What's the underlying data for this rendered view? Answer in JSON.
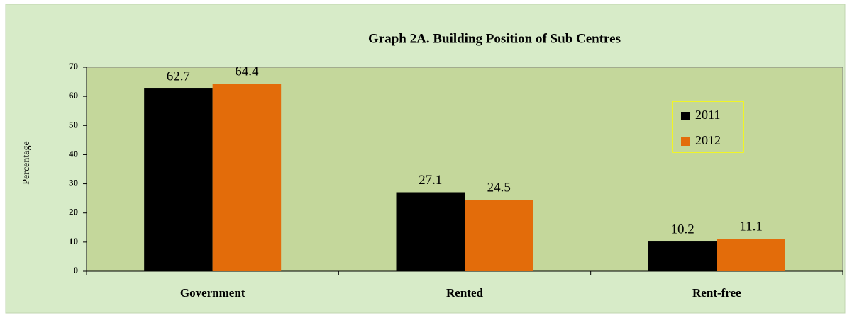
{
  "chart_data": {
    "type": "bar",
    "title": "Graph 2A. Building Position of Sub Centres",
    "ylabel": "Percentage",
    "categories": [
      "Government",
      "Rented",
      "Rent-free"
    ],
    "series": [
      {
        "name": "2011",
        "color": "#000000",
        "values": [
          62.7,
          27.1,
          10.2
        ]
      },
      {
        "name": "2012",
        "color": "#e36c0a",
        "values": [
          64.4,
          24.5,
          11.1
        ]
      }
    ],
    "ylim": [
      0,
      70
    ],
    "yticks": [
      0,
      10,
      20,
      30,
      40,
      50,
      60,
      70
    ],
    "legend": "right"
  }
}
